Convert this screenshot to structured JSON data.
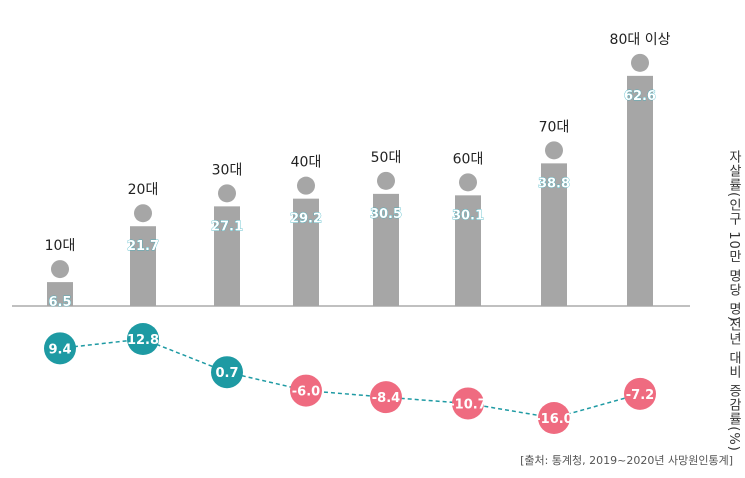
{
  "chart_data": [
    {
      "type": "bar",
      "categories": [
        "10대",
        "20대",
        "30대",
        "40대",
        "50대",
        "60대",
        "70대",
        "80대 이상"
      ],
      "values": [
        6.5,
        21.7,
        27.1,
        29.2,
        30.5,
        30.1,
        38.8,
        62.6
      ],
      "ylabel": "자살률(인구 10만 명당 명)",
      "ylim": [
        0,
        68
      ],
      "grid": false,
      "bar_color": "#a6a6a6",
      "value_label_color": "#ffffff",
      "value_label_outline": "#3ab0c0"
    },
    {
      "type": "line",
      "categories": [
        "10대",
        "20대",
        "30대",
        "40대",
        "50대",
        "60대",
        "70대",
        "80대 이상"
      ],
      "values": [
        9.4,
        12.8,
        0.7,
        -6.0,
        -8.4,
        -10.7,
        -16.0,
        -7.2
      ],
      "value_labels": [
        "9.4",
        "12.8",
        "0.7",
        "-6.0",
        "-8.4",
        "-10.7",
        "-16.0",
        "-7.2"
      ],
      "ylabel": "전년 대비 증감률(%)",
      "ylim": [
        -16,
        12.8
      ],
      "positive_color": "#1e9aa3",
      "negative_color": "#ef6b80",
      "line_color": "#1e9aa3",
      "line_style": "dashed"
    }
  ],
  "source": "[출처: 통계청, 2019~2020년 사망원인통계]"
}
